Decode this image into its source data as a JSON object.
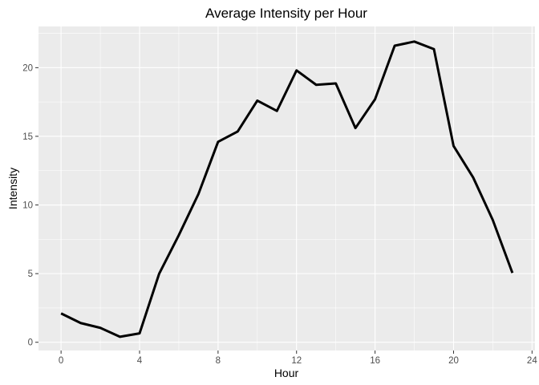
{
  "chart_data": {
    "type": "line",
    "title": "Average Intensity per Hour",
    "xlabel": "Hour",
    "ylabel": "Intensity",
    "xlim": [
      -1.15,
      24.15
    ],
    "ylim": [
      -0.6,
      23.0
    ],
    "xticks": [
      0,
      4,
      8,
      12,
      16,
      20,
      24
    ],
    "yticks": [
      0,
      5,
      10,
      15,
      20
    ],
    "grid": true,
    "series": [
      {
        "x": [
          0,
          1,
          2,
          3,
          4,
          5,
          6,
          7,
          8,
          9,
          10,
          11,
          12,
          13,
          14,
          15,
          16,
          17,
          18,
          19,
          20,
          21,
          22,
          23
        ],
        "values": [
          2.1,
          1.4,
          1.05,
          0.4,
          0.65,
          5.0,
          7.8,
          10.8,
          14.6,
          15.35,
          17.6,
          16.85,
          19.8,
          18.75,
          18.85,
          15.6,
          17.7,
          21.6,
          21.9,
          21.35,
          14.3,
          12.0,
          8.9,
          5.05
        ],
        "color": "#000000"
      }
    ]
  }
}
